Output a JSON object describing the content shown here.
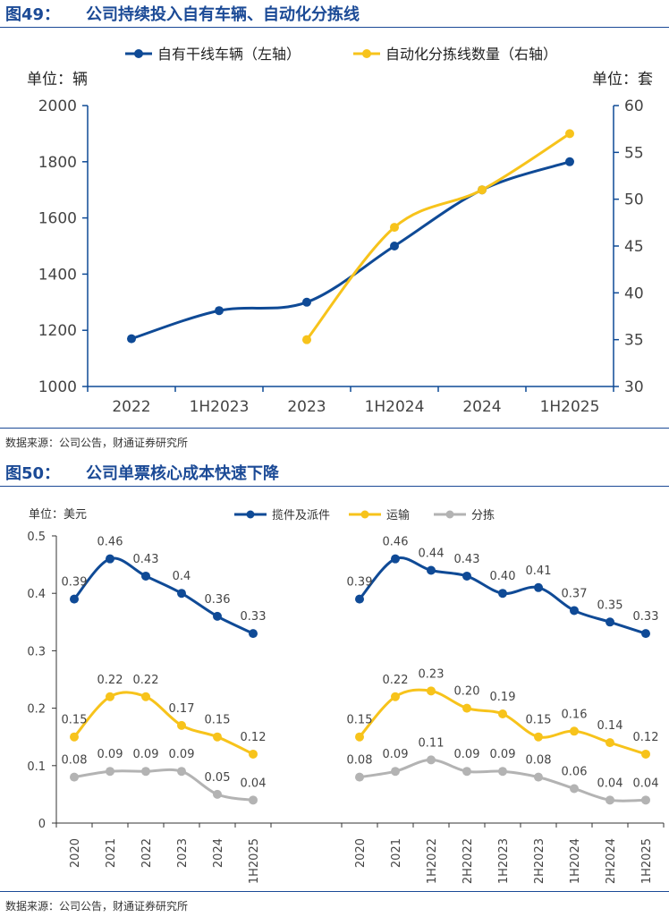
{
  "fig49": {
    "number": "图49：",
    "title": "公司持续投入自有车辆、自动化分拣线",
    "source": "数据来源：公司公告，财通证券研究所"
  },
  "fig50": {
    "number": "图50：",
    "title": "公司单票核心成本快速下降",
    "source": "数据来源：公司公告，财通证券研究所"
  },
  "colors": {
    "blue": "#0f4a96",
    "yellow": "#f7c31b",
    "gray": "#b3b3b3",
    "accent": "#1b4a96"
  },
  "chart_data": [
    {
      "id": "vehicles",
      "type": "line",
      "categories": [
        "2022",
        "1H2023",
        "2023",
        "1H2024",
        "2024",
        "1H2025"
      ],
      "series": [
        {
          "name": "自有干线车辆（左轴）",
          "axis": "left",
          "color": "#0f4a96",
          "values": [
            1170,
            1270,
            1300,
            1500,
            1700,
            1800
          ]
        },
        {
          "name": "自动化分拣线数量（右轴）",
          "axis": "right",
          "color": "#f7c31b",
          "values": [
            null,
            null,
            35,
            47,
            51,
            57
          ]
        }
      ],
      "left_axis": {
        "label": "单位：辆",
        "range": [
          1000,
          2000
        ],
        "ticks": [
          1000,
          1200,
          1400,
          1600,
          1800,
          2000
        ]
      },
      "right_axis": {
        "label": "单位：套",
        "range": [
          30,
          60
        ],
        "ticks": [
          30,
          35,
          40,
          45,
          50,
          55,
          60
        ]
      },
      "legend_position": "top-center",
      "grid": false
    },
    {
      "id": "unit-cost-annual",
      "type": "line",
      "unit_label": "单位：美元",
      "categories": [
        "2020",
        "2021",
        "2022",
        "2023",
        "2024",
        "1H2025"
      ],
      "y_range": [
        0,
        0.5
      ],
      "y_ticks": [
        "0",
        "0.1",
        "0.2",
        "0.3",
        "0.4",
        "0.5"
      ],
      "series": [
        {
          "name": "揽件及派件",
          "color": "#0f4a96",
          "values": [
            0.39,
            0.46,
            0.43,
            0.4,
            0.36,
            0.33
          ],
          "labels": [
            "0.39",
            "0.46",
            "0.43",
            "0.4",
            "0.36",
            "0.33"
          ]
        },
        {
          "name": "运输",
          "color": "#f7c31b",
          "values": [
            0.15,
            0.22,
            0.22,
            0.17,
            0.15,
            0.12
          ],
          "labels": [
            "0.15",
            "0.22",
            "0.22",
            "0.17",
            "0.15",
            "0.12"
          ]
        },
        {
          "name": "分拣",
          "color": "#b3b3b3",
          "values": [
            0.08,
            0.09,
            0.09,
            0.09,
            0.05,
            0.04
          ],
          "labels": [
            "0.08",
            "0.09",
            "0.09",
            "0.09",
            "0.05",
            "0.04"
          ]
        }
      ],
      "legend_position": "top-center",
      "grid": false
    },
    {
      "id": "unit-cost-halfyear",
      "type": "line",
      "categories": [
        "2020",
        "2021",
        "1H2022",
        "2H2022",
        "1H2023",
        "2H2023",
        "1H2024",
        "2H2024",
        "1H2025"
      ],
      "y_range": [
        0,
        0.5
      ],
      "series": [
        {
          "name": "揽件及派件",
          "color": "#0f4a96",
          "values": [
            0.39,
            0.46,
            0.44,
            0.43,
            0.4,
            0.41,
            0.37,
            0.35,
            0.33
          ],
          "labels": [
            "0.39",
            "0.46",
            "0.44",
            "0.43",
            "0.40",
            "0.41",
            "0.37",
            "0.35",
            "0.33"
          ]
        },
        {
          "name": "运输",
          "color": "#f7c31b",
          "values": [
            0.15,
            0.22,
            0.23,
            0.2,
            0.19,
            0.15,
            0.16,
            0.14,
            0.12
          ],
          "labels": [
            "0.15",
            "0.22",
            "0.23",
            "0.20",
            "0.19",
            "0.15",
            "0.16",
            "0.14",
            "0.12"
          ]
        },
        {
          "name": "分拣",
          "color": "#b3b3b3",
          "values": [
            0.08,
            0.09,
            0.11,
            0.09,
            0.09,
            0.08,
            0.06,
            0.04,
            0.04
          ],
          "labels": [
            "0.08",
            "0.09",
            "0.11",
            "0.09",
            "0.09",
            "0.08",
            "0.06",
            "0.04",
            "0.04"
          ]
        }
      ],
      "grid": false
    }
  ]
}
